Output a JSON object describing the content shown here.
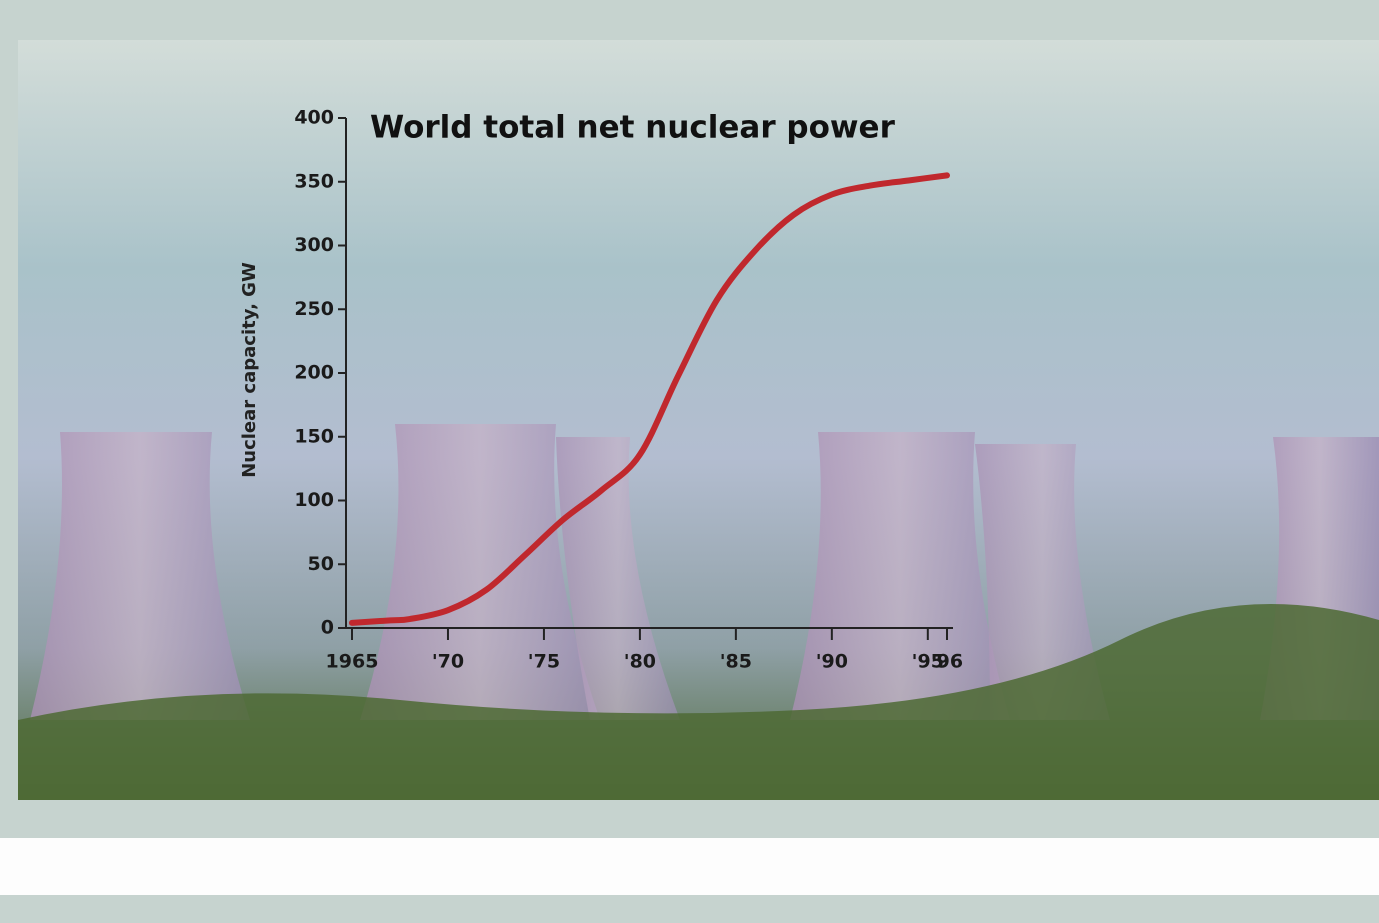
{
  "chart_data": {
    "type": "line",
    "title": "World total net nuclear power",
    "y_label": "Nuclear capacity, GW",
    "x": [
      1965,
      1967,
      1968,
      1970,
      1972,
      1974,
      1976,
      1978,
      1980,
      1982,
      1984,
      1986,
      1988,
      1990,
      1992,
      1994,
      1996
    ],
    "series": [
      {
        "name": "World total net nuclear power",
        "color": "#c0282d",
        "values": [
          4,
          6,
          7,
          14,
          30,
          57,
          85,
          108,
          136,
          198,
          257,
          296,
          324,
          340,
          347,
          351,
          355
        ]
      }
    ],
    "xlim": [
      1965,
      1996
    ],
    "xticks": [
      {
        "value": 1965,
        "label": "1965"
      },
      {
        "value": 1970,
        "label": "'70"
      },
      {
        "value": 1975,
        "label": "'75"
      },
      {
        "value": 1980,
        "label": "'80"
      },
      {
        "value": 1985,
        "label": "'85"
      },
      {
        "value": 1990,
        "label": "'90"
      },
      {
        "value": 1995,
        "label": "'95"
      },
      {
        "value": 1996,
        "label": "'96"
      }
    ],
    "ylim": [
      0,
      400
    ],
    "yticks": [
      0,
      50,
      100,
      150,
      200,
      250,
      300,
      350,
      400
    ],
    "grid": false
  }
}
